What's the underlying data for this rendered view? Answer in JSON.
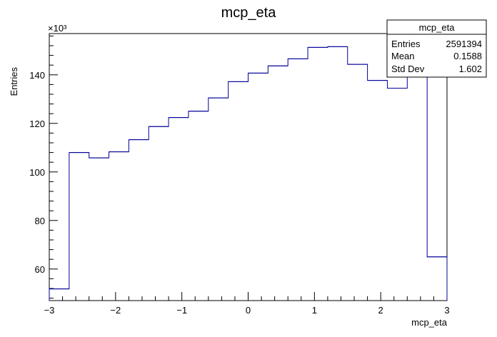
{
  "chart_data": {
    "type": "bar",
    "title": "mcp_eta",
    "xlabel": "mcp_eta",
    "ylabel": "Entries",
    "y_multiplier": "×10³",
    "xlim": [
      -3,
      3
    ],
    "ylim": [
      47,
      157
    ],
    "x_ticks": [
      -3,
      -2,
      -1,
      0,
      1,
      2,
      3
    ],
    "x_tick_labels": [
      "−3",
      "−2",
      "−1",
      "0",
      "1",
      "2",
      "3"
    ],
    "y_ticks": [
      60,
      80,
      100,
      120,
      140
    ],
    "y_tick_labels": [
      "60",
      "80",
      "100",
      "120",
      "140"
    ],
    "bin_edges": [
      -3,
      -2.7,
      -2.4,
      -2.1,
      -1.8,
      -1.5,
      -1.2,
      -0.9,
      -0.6,
      -0.3,
      0,
      0.3,
      0.6,
      0.9,
      1.2,
      1.5,
      1.8,
      2.1,
      2.4,
      2.7,
      3
    ],
    "values": [
      51.8,
      108,
      105.8,
      108.3,
      113.3,
      118.7,
      122.4,
      125,
      130.5,
      137.2,
      140.7,
      143.7,
      146.6,
      151.3,
      151.6,
      144.3,
      137.7,
      134.5,
      155,
      65
    ],
    "line_color": "#000099",
    "grid": false,
    "legend": null,
    "stats": {
      "title": "mcp_eta",
      "placement": "top-right",
      "rows": [
        {
          "label": "Entries",
          "value": "2591394"
        },
        {
          "label": "Mean",
          "value": "0.1588"
        },
        {
          "label": "Std Dev",
          "value": "1.602"
        }
      ]
    }
  }
}
